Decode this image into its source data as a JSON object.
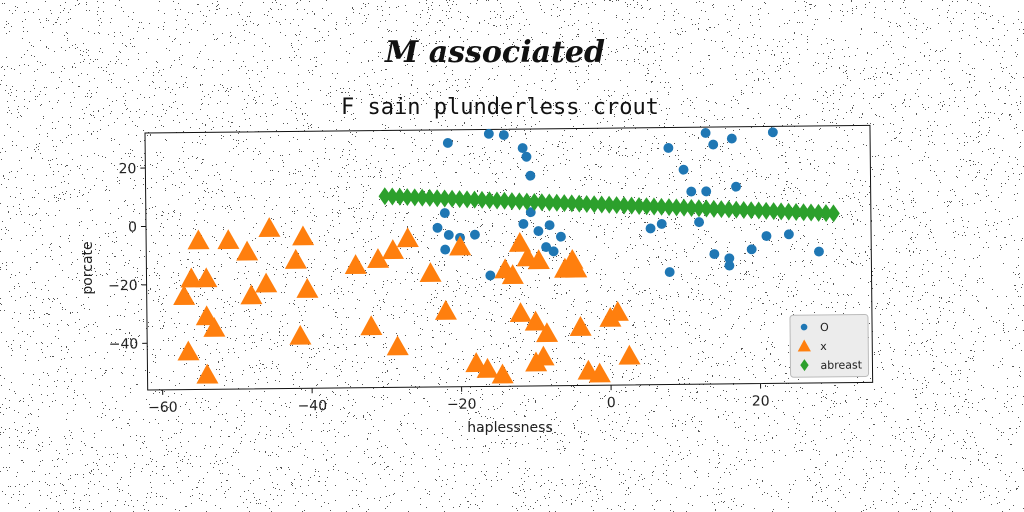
{
  "chart_data": {
    "type": "scatter",
    "suptitle": "M associated",
    "title": "F sain plunderless crout",
    "xlabel": "haplessness",
    "ylabel": "porcate",
    "xlim": [
      -62,
      35
    ],
    "ylim": [
      -56,
      32
    ],
    "xticks": [
      -60,
      -40,
      -20,
      0,
      20
    ],
    "yticks": [
      -40,
      -20,
      0,
      20
    ],
    "grid": false,
    "legend_position": "lower-right",
    "series": [
      {
        "name": "O",
        "marker": "circle",
        "color": "#1f77b4",
        "points": [
          [
            -21.5,
            27.5
          ],
          [
            -16,
            30.5
          ],
          [
            -14,
            30
          ],
          [
            -11.5,
            25.5
          ],
          [
            -11,
            22.5
          ],
          [
            -10.5,
            16
          ],
          [
            -22,
            3.5
          ],
          [
            -23,
            -1.5
          ],
          [
            -21.5,
            -4
          ],
          [
            -20,
            -5
          ],
          [
            -18,
            -4
          ],
          [
            -22,
            -9
          ],
          [
            -16,
            -18
          ],
          [
            -11.5,
            -0.5
          ],
          [
            -10.5,
            3.5
          ],
          [
            -9.5,
            -3
          ],
          [
            -8.5,
            -8.5
          ],
          [
            -7.5,
            -10
          ],
          [
            -6.5,
            -5
          ],
          [
            -8,
            -1
          ],
          [
            8,
            25
          ],
          [
            10,
            17.5
          ],
          [
            11,
            10
          ],
          [
            13,
            30
          ],
          [
            14,
            26
          ],
          [
            16.5,
            28
          ],
          [
            22,
            30
          ],
          [
            13,
            10
          ],
          [
            17,
            11.5
          ],
          [
            5.5,
            -2.5
          ],
          [
            7,
            -1
          ],
          [
            8,
            -17.5
          ],
          [
            12,
            -0.5
          ],
          [
            14,
            -11.5
          ],
          [
            16,
            -13
          ],
          [
            16,
            -15.5
          ],
          [
            19,
            -10
          ],
          [
            21,
            -5.5
          ],
          [
            24,
            -5
          ],
          [
            28,
            -11
          ]
        ]
      },
      {
        "name": "x",
        "marker": "triangle",
        "color": "#ff7f0e",
        "points": [
          [
            -56,
            -18
          ],
          [
            -54,
            -18
          ],
          [
            -57,
            -24
          ],
          [
            -55,
            -5
          ],
          [
            -54,
            -31
          ],
          [
            -53,
            -35
          ],
          [
            -51,
            -5
          ],
          [
            -48.5,
            -9
          ],
          [
            -48,
            -24
          ],
          [
            -46,
            -20
          ],
          [
            -45.5,
            -1
          ],
          [
            -42,
            -12
          ],
          [
            -41,
            -4
          ],
          [
            -40.5,
            -22
          ],
          [
            -41.5,
            -38
          ],
          [
            -56.5,
            -43
          ],
          [
            -54,
            -51
          ],
          [
            -34,
            -14
          ],
          [
            -31,
            -12
          ],
          [
            -29,
            -9
          ],
          [
            -32,
            -35
          ],
          [
            -27,
            -5
          ],
          [
            -28.5,
            -42
          ],
          [
            -24,
            -17
          ],
          [
            -22,
            -30
          ],
          [
            -20,
            -8
          ],
          [
            -18,
            -48
          ],
          [
            -16.5,
            -50
          ],
          [
            -14.5,
            -52
          ],
          [
            -14,
            -16
          ],
          [
            -13,
            -18
          ],
          [
            -12,
            -7
          ],
          [
            -11,
            -12
          ],
          [
            -9.5,
            -13
          ],
          [
            -12,
            -31
          ],
          [
            -10,
            -34
          ],
          [
            -8.5,
            -38
          ],
          [
            -10,
            -48
          ],
          [
            -9,
            -46
          ],
          [
            -6,
            -16
          ],
          [
            -5,
            -13
          ],
          [
            -4.5,
            -16
          ],
          [
            -4,
            -36
          ],
          [
            -3,
            -51
          ],
          [
            -1.5,
            -52
          ],
          [
            0,
            -33
          ],
          [
            1,
            -31
          ],
          [
            2.5,
            -46
          ]
        ]
      },
      {
        "name": "abreast",
        "marker": "diamond",
        "color": "#2ca02c",
        "x_start": -30,
        "x_end": 30,
        "count": 61,
        "y_start": 9.5,
        "y_end": 2
      }
    ]
  }
}
